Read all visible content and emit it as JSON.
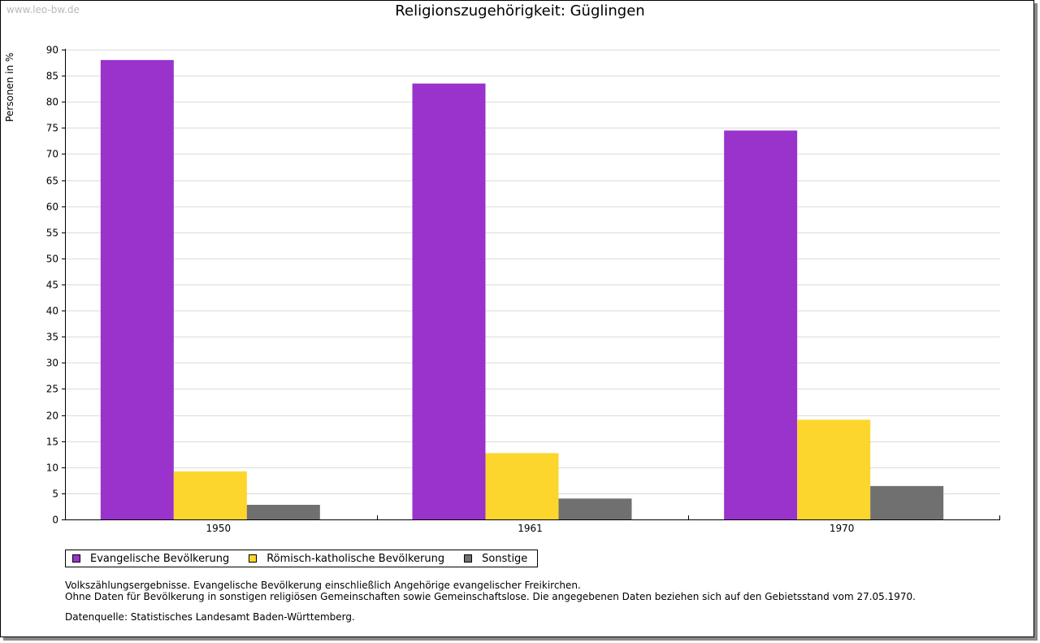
{
  "watermark": "www.leo-bw.de",
  "notes": {
    "line1": "Volkszählungsergebnisse. Evangelische Bevölkerung einschließlich Angehörige evangelischer Freikirchen.",
    "line2": "Ohne Daten für Bevölkerung in sonstigen religiösen Gemeinschaften sowie Gemeinschaftslose. Die angegebenen Daten beziehen sich auf den Gebietsstand vom 27.05.1970.",
    "source": "Datenquelle: Statistisches Landesamt Baden-Württemberg."
  },
  "chart_data": {
    "type": "bar",
    "title": "Religionszugehörigkeit: Güglingen",
    "xlabel": "",
    "ylabel": "Personen in %",
    "ylim": [
      0,
      90
    ],
    "ytick_step": 5,
    "grid": true,
    "legend_position": "bottom-left",
    "categories": [
      "1950",
      "1961",
      "1970"
    ],
    "series": [
      {
        "name": "Evangelische Bevölkerung",
        "color": "#9933cc",
        "values": [
          88.0,
          83.5,
          74.5
        ]
      },
      {
        "name": "Römisch-katholische Bevölkerung",
        "color": "#fcd62d",
        "values": [
          9.2,
          12.7,
          19.1
        ]
      },
      {
        "name": "Sonstige",
        "color": "#707070",
        "values": [
          2.8,
          4.0,
          6.4
        ]
      }
    ]
  }
}
